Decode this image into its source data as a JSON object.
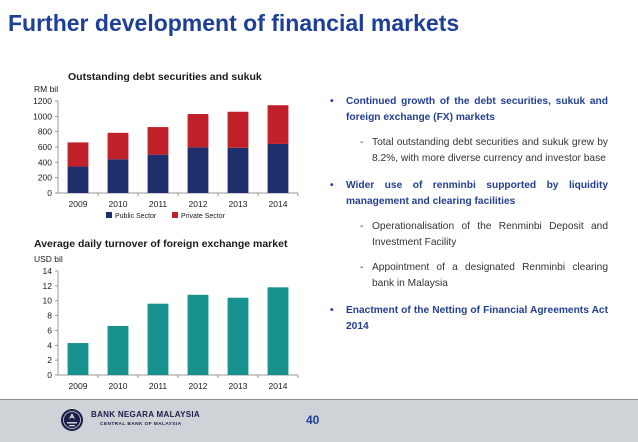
{
  "slide": {
    "title": "Further development of financial markets",
    "page_number": "40"
  },
  "bullets": [
    {
      "text": "Continued growth of the debt securities, sukuk and foreign exchange (FX) markets",
      "subs": [
        "Total outstanding debt securities and sukuk grew by 8.2%, with more diverse currency and investor base"
      ]
    },
    {
      "text": "Wider use of renminbi supported by liquidity management and clearing facilities",
      "subs": [
        "Operationalisation of the Renminbi Deposit and Investment Facility",
        "Appointment of a designated Renminbi clearing bank in Malaysia"
      ]
    },
    {
      "text": "Enactment of the Netting of Financial Agreements Act 2014",
      "subs": []
    }
  ],
  "bullet_marker": "•",
  "sub_marker": "-",
  "footer": {
    "bank_name": "BANK NEGARA MALAYSIA",
    "bank_subtitle": "CENTRAL BANK OF MALAYSIA",
    "logo_icon": "bank-emblem-icon",
    "bar_color": "#cfd2d6"
  },
  "chart_data": [
    {
      "type": "bar",
      "stacked": true,
      "title": "Outstanding debt securities and sukuk",
      "ylabel": "RM bil",
      "categories": [
        "2009",
        "2010",
        "2011",
        "2012",
        "2013",
        "2014"
      ],
      "series": [
        {
          "name": "Public Sector",
          "color": "#1f2f6e",
          "values": [
            345,
            440,
            500,
            595,
            590,
            640
          ]
        },
        {
          "name": "Private Sector",
          "color": "#c0202a",
          "values": [
            315,
            345,
            360,
            435,
            470,
            505
          ]
        }
      ],
      "ylim": [
        0,
        1200
      ],
      "yticks": [
        0,
        200,
        400,
        600,
        800,
        1000,
        1200
      ],
      "legend": "bottom",
      "grid": false
    },
    {
      "type": "bar",
      "title": "Average daily turnover of foreign exchange market",
      "ylabel": "USD bil",
      "categories": [
        "2009",
        "2010",
        "2011",
        "2012",
        "2013",
        "2014"
      ],
      "series": [
        {
          "color": "#17918e",
          "values": [
            4.3,
            6.6,
            9.6,
            10.8,
            10.4,
            11.8
          ]
        }
      ],
      "ylim": [
        0,
        14
      ],
      "yticks": [
        0,
        2,
        4,
        6,
        8,
        10,
        12,
        14
      ],
      "grid": false
    }
  ]
}
